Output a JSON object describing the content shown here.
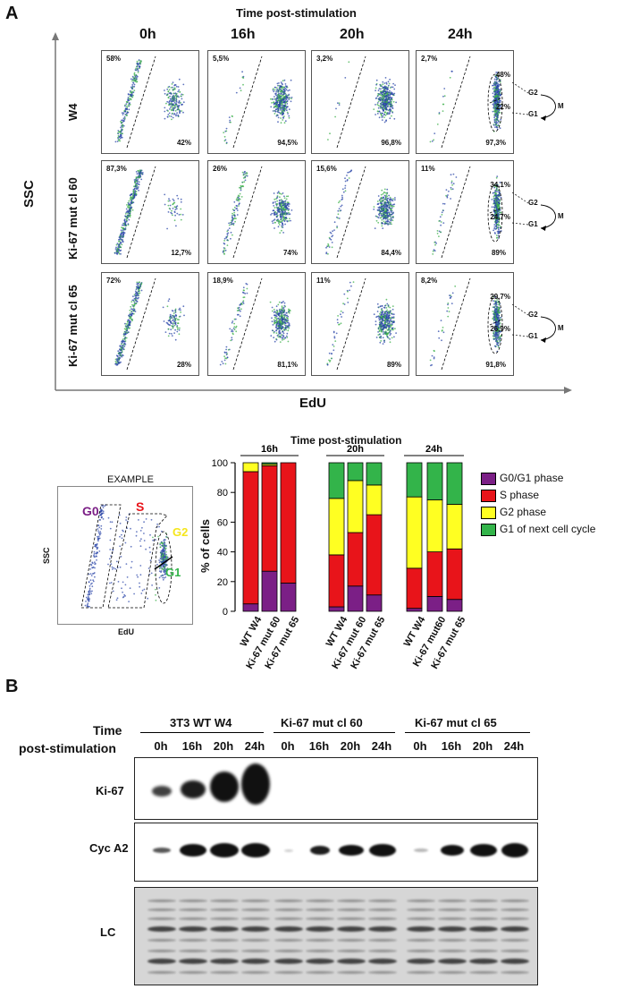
{
  "panel_a": {
    "letter": "A",
    "top_title": "Time post-stimulation",
    "time_labels": [
      "0h",
      "16h",
      "20h",
      "24h"
    ],
    "row_labels": [
      "W4",
      "Ki-67 mut cl 60",
      "Ki-67 mut cl 65"
    ],
    "y_axis": "SSC",
    "x_axis": "EdU",
    "facs": [
      [
        {
          "tl": "58%",
          "br": "42%"
        },
        {
          "tl": "5,5%",
          "br": "94,5%"
        },
        {
          "tl": "3,2%",
          "br": "96,8%"
        },
        {
          "tl": "2,7%",
          "br": "97,3%",
          "g2": "48%",
          "g1": "22%"
        }
      ],
      [
        {
          "tl": "87,3%",
          "br": "12,7%"
        },
        {
          "tl": "26%",
          "br": "74%"
        },
        {
          "tl": "15,6%",
          "br": "84,4%"
        },
        {
          "tl": "11%",
          "br": "89%",
          "g2": "34,1%",
          "g1": "24,7%"
        }
      ],
      [
        {
          "tl": "72%",
          "br": "28%"
        },
        {
          "tl": "18,9%",
          "br": "81,1%"
        },
        {
          "tl": "11%",
          "br": "89%"
        },
        {
          "tl": "8,2%",
          "br": "91,8%",
          "g2": "29,7%",
          "g1": "26,9%"
        }
      ]
    ],
    "gate_labels": {
      "g2": "G2",
      "g1": "G1",
      "m": "M"
    },
    "example": {
      "title": "EXAMPLE",
      "ylabel": "SSC",
      "xlabel": "EdU",
      "g0": "G0",
      "s": "S",
      "g2": "G2",
      "g1": "G1"
    },
    "bar_title": "Time post-stimulation"
  },
  "chart_data": {
    "type": "bar",
    "stacked": true,
    "ylabel": "% of cells",
    "ylim": [
      0,
      100
    ],
    "yticks": [
      0,
      20,
      40,
      60,
      80,
      100
    ],
    "groups": [
      "16h",
      "20h",
      "24h"
    ],
    "categories": [
      "WT W4",
      "Ki-67 mut 60",
      "Ki-67 mut 65",
      "WT W4",
      "Ki-67 mut 60",
      "Ki-67 mut 65",
      "WT W4",
      "Ki-67 mut60",
      "Ki-67 mut 65"
    ],
    "series": [
      {
        "name": "G0/G1 phase",
        "color": "#7b1f86",
        "values": [
          5,
          27,
          19,
          3,
          17,
          11,
          2,
          10,
          8
        ]
      },
      {
        "name": "S phase",
        "color": "#e8141a",
        "values": [
          89,
          71,
          81,
          35,
          36,
          54,
          27,
          30,
          34
        ]
      },
      {
        "name": "G2 phase",
        "color": "#ffff22",
        "values": [
          6,
          1,
          0,
          38,
          35,
          20,
          48,
          35,
          30
        ]
      },
      {
        "name": "G1 of next cell cycle",
        "color": "#33b44a",
        "values": [
          0,
          1,
          0,
          24,
          12,
          15,
          23,
          25,
          28
        ]
      }
    ]
  },
  "panel_b": {
    "letter": "B",
    "time_label": "Time",
    "time_label2": "post-stimulation",
    "groups": [
      "3T3 WT W4",
      "Ki-67 mut cl 60",
      "Ki-67 mut cl 65"
    ],
    "lanes": [
      "0h",
      "16h",
      "20h",
      "24h",
      "0h",
      "16h",
      "20h",
      "24h",
      "0h",
      "16h",
      "20h",
      "24h"
    ],
    "blots": [
      "Ki-67",
      "Cyc A2",
      "LC"
    ]
  }
}
